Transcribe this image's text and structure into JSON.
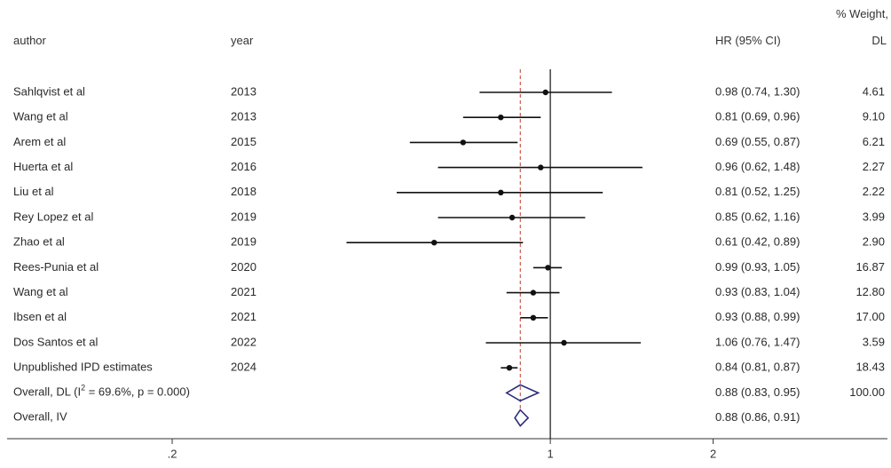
{
  "headers": {
    "author": "author",
    "year": "year",
    "estimate": "HR (95% CI)",
    "weight_line1": "% Weight,",
    "weight_line2": "DL"
  },
  "chart_data": {
    "type": "forest",
    "scale": "log",
    "null_line": 1,
    "pooled_line": 0.88,
    "xlim": [
      0.13,
      4.2
    ],
    "x_ticks": [
      {
        "value": 0.2,
        "label": ".2"
      },
      {
        "value": 1,
        "label": "1"
      },
      {
        "value": 2,
        "label": "2"
      }
    ],
    "studies": [
      {
        "author": "Sahlqvist et al",
        "year": "2013",
        "hr": 0.98,
        "lo": 0.74,
        "hi": 1.3,
        "ci_text": "0.98 (0.74, 1.30)",
        "weight": "4.61"
      },
      {
        "author": "Wang et al",
        "year": "2013",
        "hr": 0.81,
        "lo": 0.69,
        "hi": 0.96,
        "ci_text": "0.81 (0.69, 0.96)",
        "weight": "9.10"
      },
      {
        "author": "Arem et al",
        "year": "2015",
        "hr": 0.69,
        "lo": 0.55,
        "hi": 0.87,
        "ci_text": "0.69 (0.55, 0.87)",
        "weight": "6.21"
      },
      {
        "author": "Huerta et al",
        "year": "2016",
        "hr": 0.96,
        "lo": 0.62,
        "hi": 1.48,
        "ci_text": "0.96 (0.62, 1.48)",
        "weight": "2.27"
      },
      {
        "author": "Liu et al",
        "year": "2018",
        "hr": 0.81,
        "lo": 0.52,
        "hi": 1.25,
        "ci_text": "0.81 (0.52, 1.25)",
        "weight": "2.22"
      },
      {
        "author": "Rey Lopez et al",
        "year": "2019",
        "hr": 0.85,
        "lo": 0.62,
        "hi": 1.16,
        "ci_text": "0.85 (0.62, 1.16)",
        "weight": "3.99"
      },
      {
        "author": "Zhao et al",
        "year": "2019",
        "hr": 0.61,
        "lo": 0.42,
        "hi": 0.89,
        "ci_text": "0.61 (0.42, 0.89)",
        "weight": "2.90"
      },
      {
        "author": "Rees-Punia et al",
        "year": "2020",
        "hr": 0.99,
        "lo": 0.93,
        "hi": 1.05,
        "ci_text": "0.99 (0.93, 1.05)",
        "weight": "16.87"
      },
      {
        "author": "Wang et al",
        "year": "2021",
        "hr": 0.93,
        "lo": 0.83,
        "hi": 1.04,
        "ci_text": "0.93 (0.83, 1.04)",
        "weight": "12.80"
      },
      {
        "author": "Ibsen et al",
        "year": "2021",
        "hr": 0.93,
        "lo": 0.88,
        "hi": 0.99,
        "ci_text": "0.93 (0.88, 0.99)",
        "weight": "17.00"
      },
      {
        "author": "Dos Santos et al",
        "year": "2022",
        "hr": 1.06,
        "lo": 0.76,
        "hi": 1.47,
        "ci_text": "1.06 (0.76, 1.47)",
        "weight": "3.59"
      },
      {
        "author": "Unpublished IPD estimates",
        "year": "2024",
        "hr": 0.84,
        "lo": 0.81,
        "hi": 0.87,
        "ci_text": "0.84 (0.81, 0.87)",
        "weight": "18.43"
      }
    ],
    "overall": [
      {
        "label_prefix": "Overall, DL (I",
        "label_sup": "2",
        "label_suffix": " = 69.6%, p = 0.000)",
        "hr": 0.88,
        "lo": 0.83,
        "hi": 0.95,
        "ci_text": "0.88 (0.83, 0.95)",
        "weight": "100.00"
      },
      {
        "label_prefix": "Overall, IV",
        "label_sup": "",
        "label_suffix": "",
        "hr": 0.88,
        "lo": 0.86,
        "hi": 0.91,
        "ci_text": "0.88 (0.86, 0.91)",
        "weight": ""
      }
    ],
    "colors": {
      "marker": "#111111",
      "null_line": "#111111",
      "pooled_line": "#c0392b",
      "diamond": "#2c2c7a",
      "axis": "#333333"
    }
  }
}
